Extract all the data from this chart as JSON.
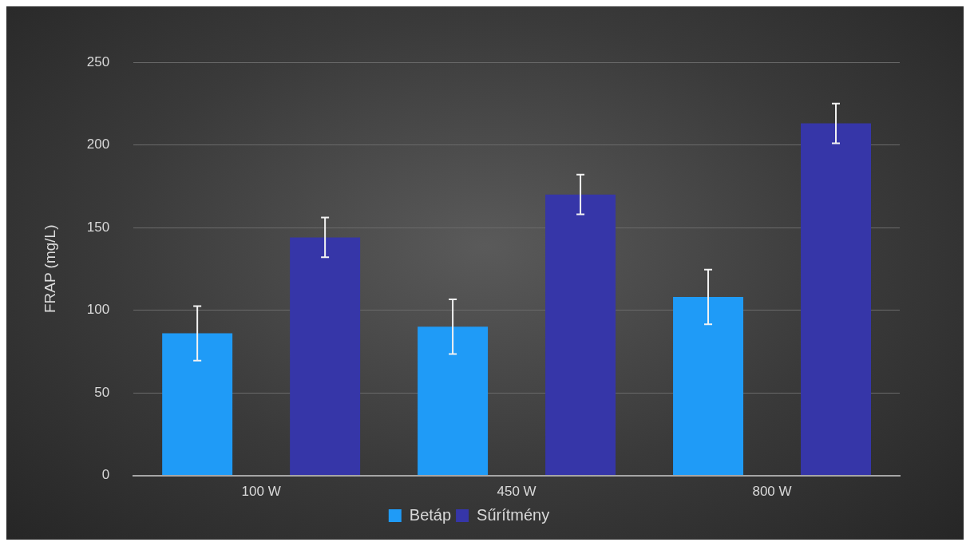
{
  "chart_data": {
    "type": "bar",
    "ylabel": "FRAP (mg/L)",
    "categories": [
      "100 W",
      "450 W",
      "800 W"
    ],
    "series": [
      {
        "name": "Betáp",
        "color": "#1f9bf7",
        "values": [
          86,
          90,
          108
        ],
        "errors": [
          16.5,
          16.5,
          16.5
        ]
      },
      {
        "name": "Sűrítmény",
        "color": "#3636a8",
        "values": [
          144,
          170,
          213
        ],
        "errors": [
          12,
          12,
          12
        ]
      }
    ],
    "ylim": [
      0,
      250
    ],
    "yticks": [
      0,
      50,
      100,
      150,
      200,
      250
    ],
    "grid": "y",
    "legend": "bottom"
  }
}
